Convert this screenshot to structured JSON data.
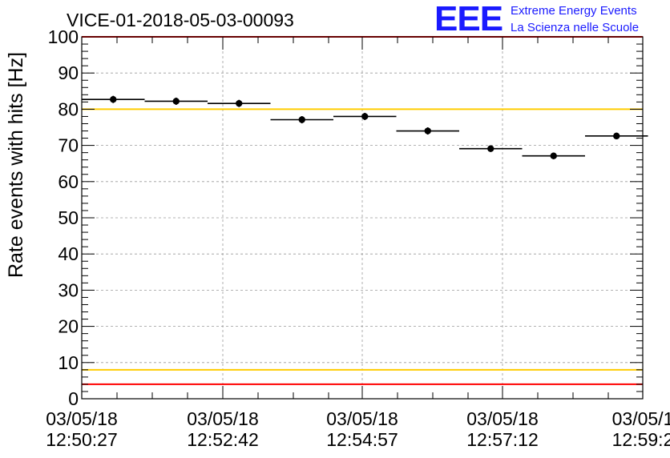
{
  "header": {
    "run_title": "VICE-01-2018-05-03-00093",
    "logo_text": "EEE",
    "logo_line1": "Extreme Energy Events",
    "logo_line2": "La Scienza nelle Scuole"
  },
  "chart_data": {
    "type": "scatter",
    "title": "VICE-01-2018-05-03-00093",
    "xlabel": "",
    "ylabel": "Rate events with hits [Hz]",
    "ylim": [
      0,
      100
    ],
    "y_ticks": [
      0,
      10,
      20,
      30,
      40,
      50,
      60,
      70,
      80,
      90,
      100
    ],
    "x_tick_labels": [
      {
        "date": "03/05/18",
        "time": "12:50:27"
      },
      {
        "date": "03/05/18",
        "time": "12:52:42"
      },
      {
        "date": "03/05/18",
        "time": "12:54:57"
      },
      {
        "date": "03/05/18",
        "time": "12:57:12"
      },
      {
        "date": "03/05/1",
        "time": "12:59:2"
      }
    ],
    "grid": true,
    "reference_lines": [
      {
        "y": 100,
        "color": "#ff0000"
      },
      {
        "y": 80,
        "color": "#ffcc00"
      },
      {
        "y": 8,
        "color": "#ffcc00"
      },
      {
        "y": 4,
        "color": "#ff0000"
      }
    ],
    "points": [
      {
        "y": 82.7,
        "err": 1.0
      },
      {
        "y": 82.2,
        "err": 1.0
      },
      {
        "y": 81.6,
        "err": 1.0
      },
      {
        "y": 77.1,
        "err": 1.0
      },
      {
        "y": 78.0,
        "err": 1.0
      },
      {
        "y": 74.0,
        "err": 1.0
      },
      {
        "y": 69.1,
        "err": 0.9
      },
      {
        "y": 67.1,
        "err": 0.9
      },
      {
        "y": 72.6,
        "err": 0.9
      }
    ],
    "marker_color": "#000000"
  }
}
